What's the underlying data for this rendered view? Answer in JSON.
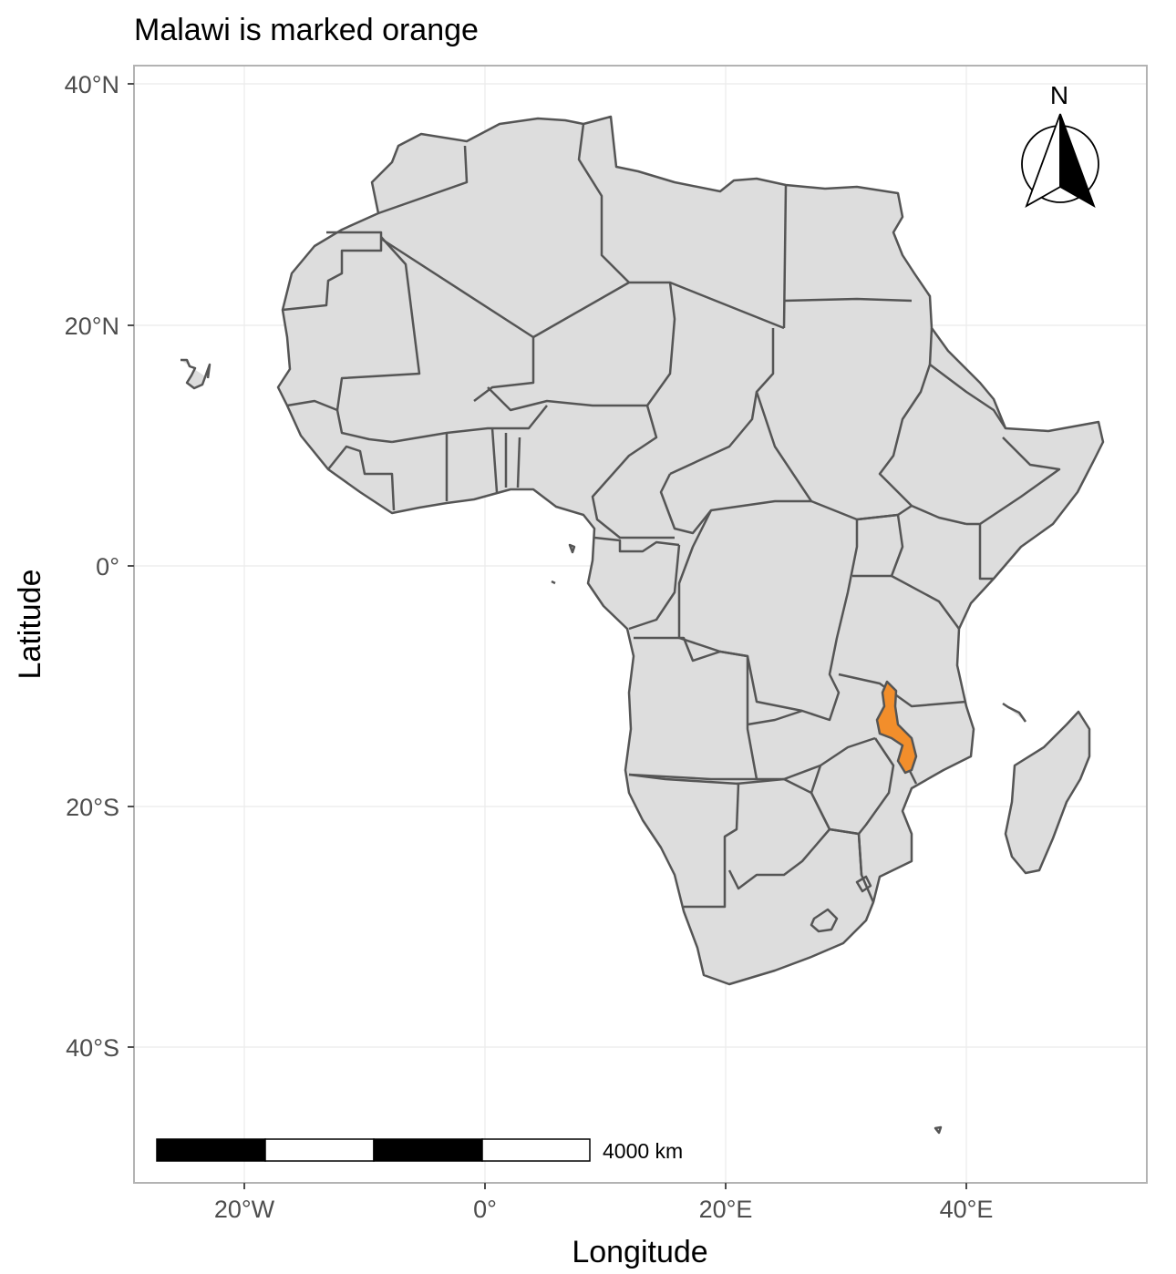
{
  "title": "Malawi is marked orange",
  "axes": {
    "xlabel": "Longitude",
    "ylabel": "Latitude",
    "x_ticks": [
      "20°W",
      "0°",
      "20°E",
      "40°E"
    ],
    "y_ticks": [
      "40°N",
      "20°N",
      "0°",
      "20°S",
      "40°S"
    ]
  },
  "map": {
    "region": "Africa",
    "highlighted_country": "Malawi",
    "land_color": "#dddddd",
    "border_color": "#555555",
    "highlight_color": "#f28e2b"
  },
  "scale_bar": {
    "label": "4000 km",
    "segments": 4
  },
  "north_arrow": {
    "label": "N"
  }
}
